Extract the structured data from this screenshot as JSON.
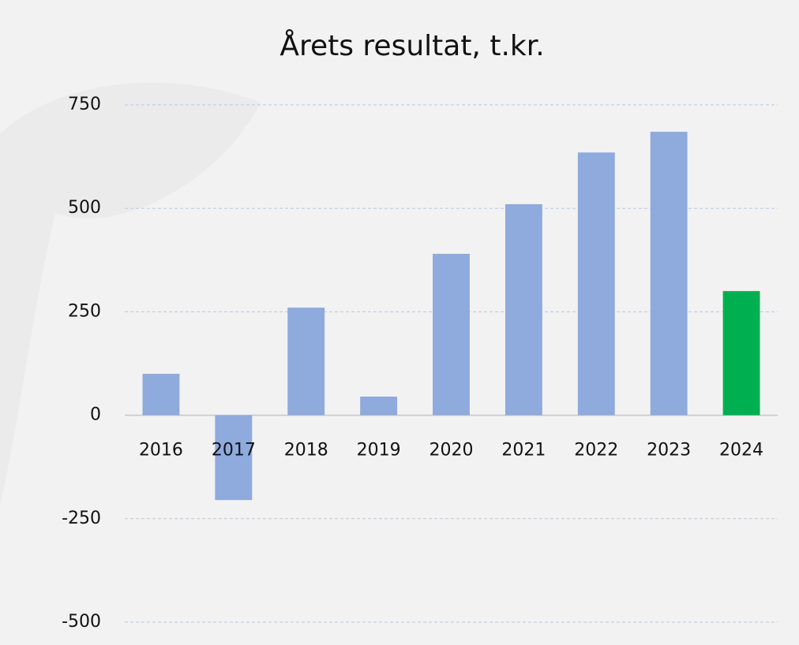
{
  "chart_data": {
    "type": "bar",
    "title": "Årets resultat, t.kr.",
    "categories": [
      "2016",
      "2017",
      "2018",
      "2019",
      "2020",
      "2021",
      "2022",
      "2023",
      "2024"
    ],
    "values": [
      100,
      -205,
      260,
      45,
      390,
      510,
      635,
      685,
      300
    ],
    "colors": [
      "#8faadc",
      "#8faadc",
      "#8faadc",
      "#8faadc",
      "#8faadc",
      "#8faadc",
      "#8faadc",
      "#8faadc",
      "#00b050"
    ],
    "ylim": [
      -500,
      750
    ],
    "yticks": [
      -500,
      -250,
      0,
      250,
      500,
      750
    ],
    "grid": true
  }
}
